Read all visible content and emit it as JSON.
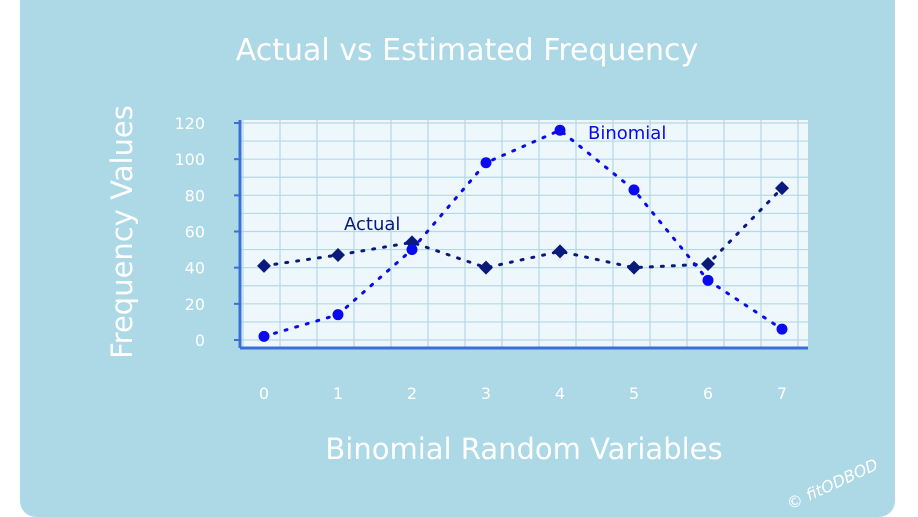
{
  "chart_data": {
    "type": "line",
    "title": "Actual vs Estimated Frequency",
    "xlabel": "Binomial Random Variables",
    "ylabel": "Frequency Values",
    "x": [
      0,
      1,
      2,
      3,
      4,
      5,
      6,
      7
    ],
    "xlim": [
      0,
      7
    ],
    "ylim": [
      0,
      120
    ],
    "yticks": [
      0,
      20,
      40,
      60,
      80,
      100,
      120
    ],
    "grid": true,
    "series": [
      {
        "name": "Actual",
        "marker": "diamond",
        "color": "#0a1a7a",
        "values": [
          41,
          47,
          54,
          40,
          49,
          40,
          42,
          84
        ]
      },
      {
        "name": "Binomial",
        "marker": "circle",
        "color": "#0a0aee",
        "values": [
          2,
          14,
          50,
          98,
          116,
          83,
          33,
          6
        ]
      }
    ]
  },
  "watermark": "© fitODBOD",
  "colors": {
    "panel": "#add8e6",
    "plot_area": "#eef7fc",
    "grid": "#b5d8e6",
    "axis": "#3b6fd8"
  }
}
